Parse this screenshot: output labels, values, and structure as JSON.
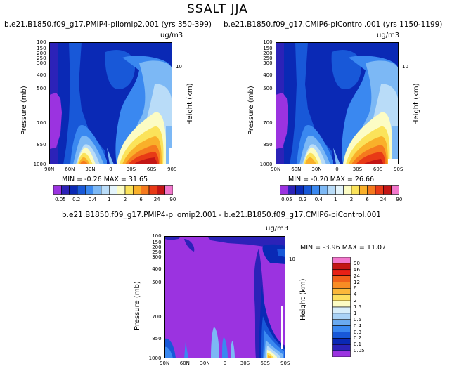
{
  "figure": {
    "title": "SSALT JJA",
    "units": "ug/m3"
  },
  "chart_data": [
    {
      "type": "heatmap",
      "title": "b.e21.B1850.f09_g17.PMIP4-pliomip2.001 (yrs 350-399)",
      "units": "ug/m3",
      "xlabel": "",
      "ylabel": "Pressure (mb)",
      "ylabel_right": "Height (km)",
      "x_ticks": [
        "90N",
        "60N",
        "30N",
        "0",
        "30S",
        "60S",
        "90S"
      ],
      "y_ticks": [
        "100",
        "150",
        "200",
        "250",
        "300",
        "400",
        "500",
        "700",
        "850",
        "1000"
      ],
      "right_ticks": [
        "10"
      ],
      "ylim": [
        1000,
        100
      ],
      "stats": "MIN = -0.26   MAX = 31.65",
      "min": -0.26,
      "max": 31.65,
      "colorbar_labels": [
        "0.05",
        "0.2",
        "0.4",
        "1",
        "2",
        "6",
        "24",
        "90"
      ],
      "colorbar_orientation": "horizontal"
    },
    {
      "type": "heatmap",
      "title": "b.e21.B1850.f09_g17.CMIP6-piControl.001 (yrs 1150-1199)",
      "units": "ug/m3",
      "xlabel": "",
      "ylabel": "Pressure (mb)",
      "ylabel_right": "Height (km)",
      "x_ticks": [
        "90N",
        "60N",
        "30N",
        "0",
        "30S",
        "60S",
        "90S"
      ],
      "y_ticks": [
        "100",
        "150",
        "200",
        "250",
        "300",
        "400",
        "500",
        "700",
        "850",
        "1000"
      ],
      "right_ticks": [
        "10"
      ],
      "ylim": [
        1000,
        100
      ],
      "stats": "MIN = -0.20   MAX = 26.66",
      "min": -0.2,
      "max": 26.66,
      "colorbar_labels": [
        "0.05",
        "0.2",
        "0.4",
        "1",
        "2",
        "6",
        "24",
        "90"
      ],
      "colorbar_orientation": "horizontal"
    },
    {
      "type": "heatmap",
      "title": "b.e21.B1850.f09_g17.PMIP4-pliomip2.001 - b.e21.B1850.f09_g17.CMIP6-piControl.001",
      "units": "ug/m3",
      "xlabel": "",
      "ylabel": "Pressure (mb)",
      "ylabel_right": "Height (km)",
      "x_ticks": [
        "90N",
        "60N",
        "30N",
        "0",
        "30S",
        "60S",
        "90S"
      ],
      "y_ticks": [
        "100",
        "150",
        "200",
        "250",
        "300",
        "400",
        "500",
        "700",
        "850",
        "1000"
      ],
      "right_ticks": [
        "10"
      ],
      "ylim": [
        1000,
        100
      ],
      "stats": "MIN = -3.96   MAX = 11.07",
      "min": -3.96,
      "max": 11.07,
      "colorbar_labels": [
        "90",
        "46",
        "24",
        "12",
        "6",
        "4",
        "2",
        "1.5",
        "1",
        "0.5",
        "0.4",
        "0.3",
        "0.2",
        "0.1",
        "0.05"
      ],
      "colorbar_orientation": "vertical"
    }
  ],
  "palettes": {
    "horizontal": [
      "#9b33e0",
      "#2c22b8",
      "#0a29b5",
      "#1858d8",
      "#3a88f0",
      "#7cb8f5",
      "#b9dcf8",
      "#e4f4fb",
      "#fcfcc4",
      "#fbe35a",
      "#f9b02a",
      "#f57a1e",
      "#e83a16",
      "#c31515",
      "#f277cc"
    ],
    "vertical": [
      "#f277cc",
      "#c31515",
      "#e82016",
      "#f0601a",
      "#f88c24",
      "#fbb83a",
      "#fde060",
      "#fcfcc4",
      "#d8eefa",
      "#a9d2f6",
      "#6aaaf0",
      "#3a88f0",
      "#1858d8",
      "#0a29b5",
      "#2c22b8",
      "#9b33e0"
    ]
  }
}
